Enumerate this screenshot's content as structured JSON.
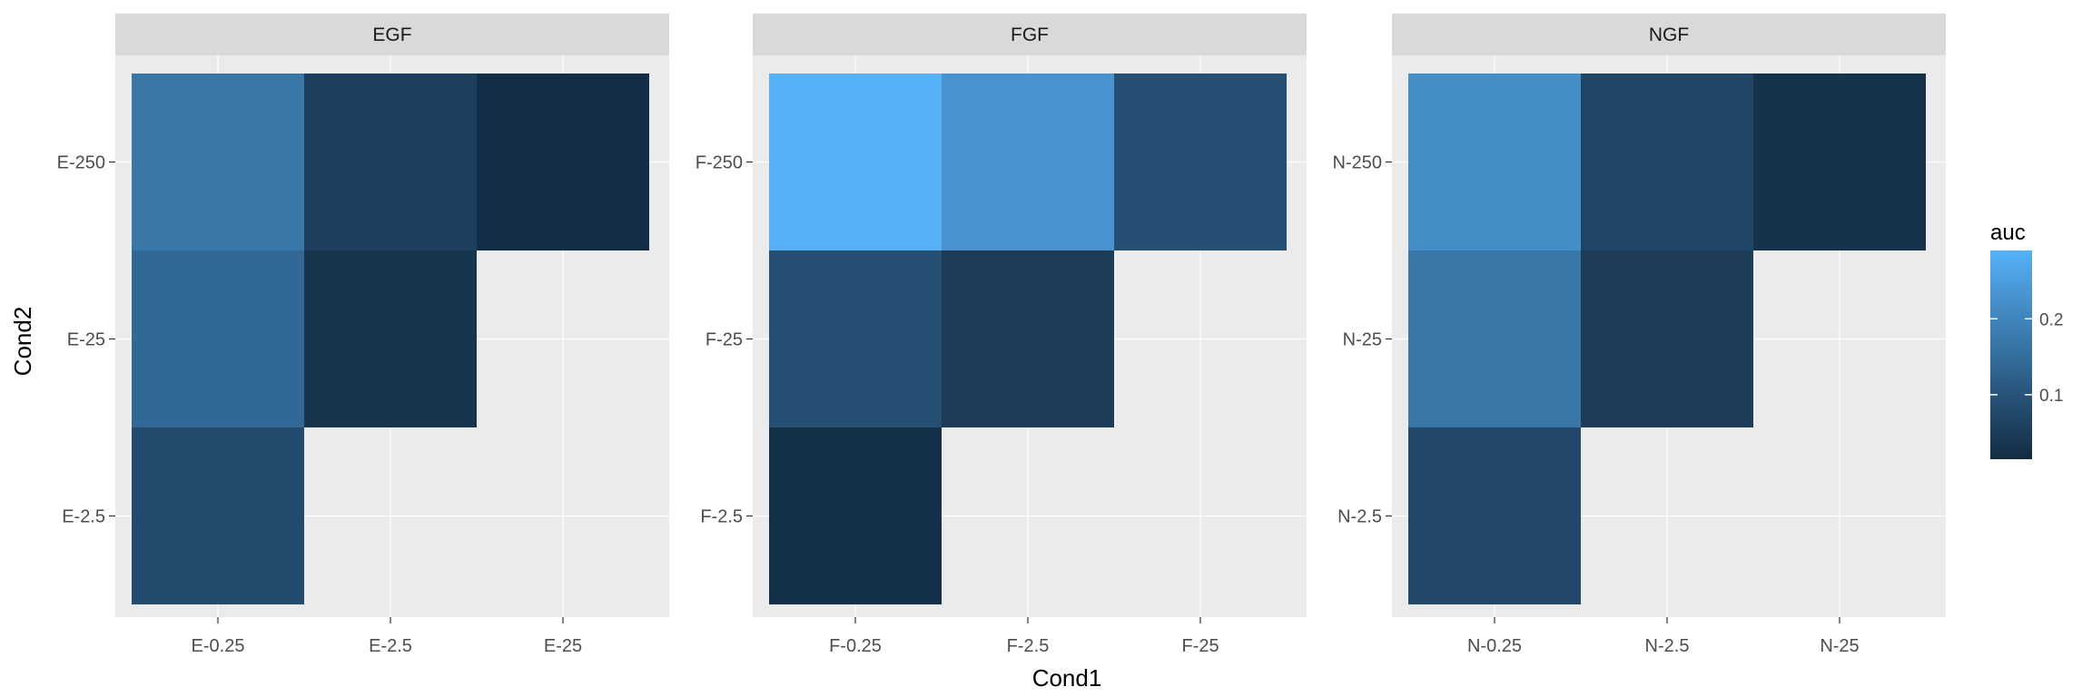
{
  "chart_data": {
    "type": "heatmap",
    "xlabel": "Cond1",
    "ylabel": "Cond2",
    "legend": {
      "title": "auc",
      "breaks": [
        0.1,
        0.2
      ],
      "break_labels": [
        "0.1",
        "0.2"
      ],
      "min": 0.015,
      "max": 0.29,
      "color_low": "#132B43",
      "color_high": "#56B1F7",
      "placement": "right"
    },
    "panel_background": "#EBEBEB",
    "strip_background": "#D9D9D9",
    "facets": [
      {
        "name": "EGF",
        "x_categories": [
          "E-0.25",
          "E-2.5",
          "E-25"
        ],
        "y_categories": [
          "E-2.5",
          "E-25",
          "E-250"
        ],
        "cells": [
          {
            "x": "E-0.25",
            "y": "E-250",
            "value": 0.17
          },
          {
            "x": "E-2.5",
            "y": "E-250",
            "value": 0.055
          },
          {
            "x": "E-25",
            "y": "E-250",
            "value": 0.02
          },
          {
            "x": "E-0.25",
            "y": "E-25",
            "value": 0.14
          },
          {
            "x": "E-2.5",
            "y": "E-25",
            "value": 0.035
          },
          {
            "x": "E-0.25",
            "y": "E-2.5",
            "value": 0.08
          }
        ]
      },
      {
        "name": "FGF",
        "x_categories": [
          "F-0.25",
          "F-2.5",
          "F-25"
        ],
        "y_categories": [
          "F-2.5",
          "F-25",
          "F-250"
        ],
        "cells": [
          {
            "x": "F-0.25",
            "y": "F-250",
            "value": 0.29
          },
          {
            "x": "F-2.5",
            "y": "F-250",
            "value": 0.23
          },
          {
            "x": "F-25",
            "y": "F-250",
            "value": 0.09
          },
          {
            "x": "F-0.25",
            "y": "F-25",
            "value": 0.09
          },
          {
            "x": "F-2.5",
            "y": "F-25",
            "value": 0.05
          },
          {
            "x": "F-0.25",
            "y": "F-2.5",
            "value": 0.025
          }
        ]
      },
      {
        "name": "NGF",
        "x_categories": [
          "N-0.25",
          "N-2.5",
          "N-25"
        ],
        "y_categories": [
          "N-2.5",
          "N-25",
          "N-250"
        ],
        "cells": [
          {
            "x": "N-0.25",
            "y": "N-250",
            "value": 0.22
          },
          {
            "x": "N-2.5",
            "y": "N-250",
            "value": 0.07
          },
          {
            "x": "N-25",
            "y": "N-250",
            "value": 0.03
          },
          {
            "x": "N-0.25",
            "y": "N-25",
            "value": 0.17
          },
          {
            "x": "N-2.5",
            "y": "N-25",
            "value": 0.05
          },
          {
            "x": "N-0.25",
            "y": "N-2.5",
            "value": 0.075
          }
        ]
      }
    ]
  }
}
